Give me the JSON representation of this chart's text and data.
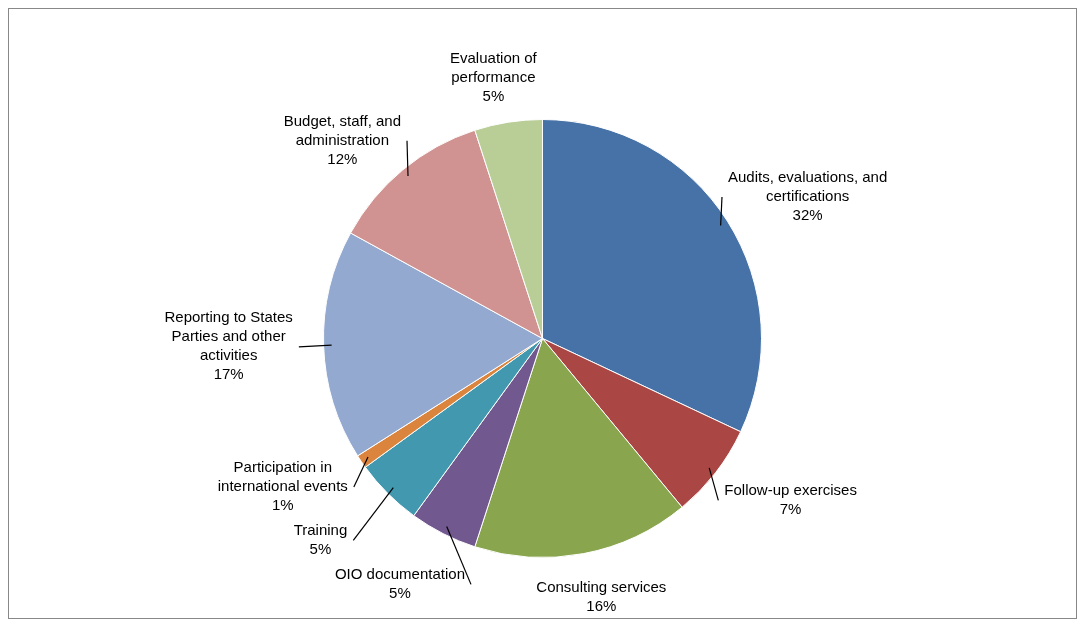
{
  "chart_data": {
    "type": "pie",
    "categories": [
      "Audits, evaluations, and certifications",
      "Follow-up exercises",
      "Consulting services",
      "OIO documentation",
      "Training",
      "Participation in international events",
      "Reporting to States Parties and other activities",
      "Budget, staff, and administration",
      "Evaluation of performance"
    ],
    "values": [
      32,
      7,
      16,
      5,
      5,
      1,
      17,
      12,
      5
    ],
    "colors": [
      "#4672a8",
      "#aa4643",
      "#89a54e",
      "#71588f",
      "#4198af",
      "#db843d",
      "#93a9cf",
      "#d19392",
      "#b9cd96"
    ],
    "value_labels": [
      "32%",
      "7%",
      "16%",
      "5%",
      "5%",
      "1%",
      "17%",
      "12%",
      "5%"
    ],
    "legend": false
  }
}
